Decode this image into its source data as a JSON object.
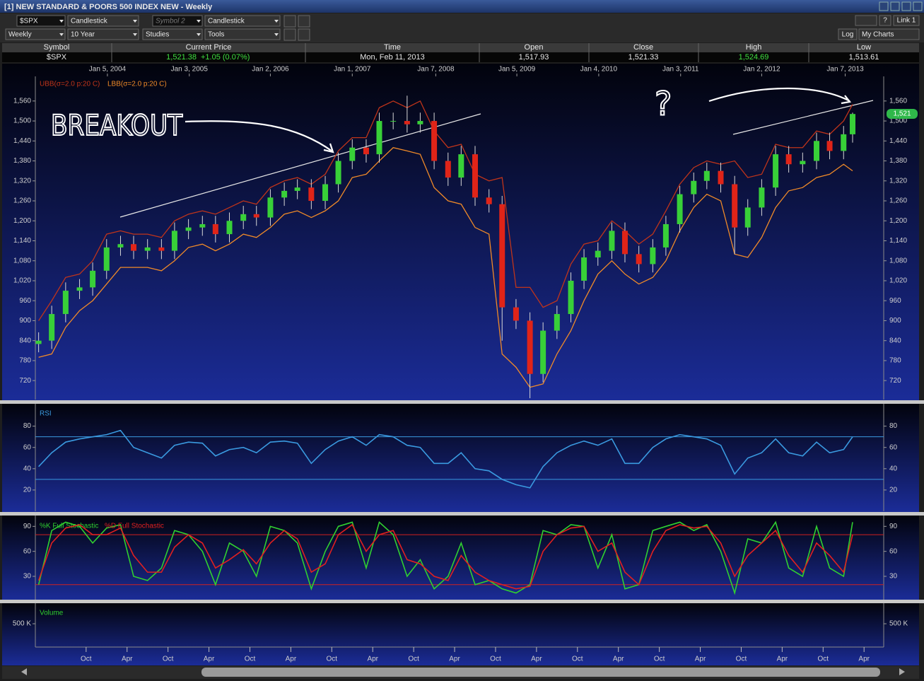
{
  "window": {
    "title": "[1] NEW STANDARD & POORS 500 INDEX NEW - Weekly"
  },
  "toolbar": {
    "symbol": "$SPX",
    "chart_type": "Candlestick",
    "symbol2": "Symbol 2",
    "chart_type2": "Candlestick",
    "period": "Weekly",
    "range": "10 Year",
    "studies": "Studies",
    "tools": "Tools",
    "log": "Log",
    "my_charts": "My Charts",
    "link": "Link 1",
    "help": "?"
  },
  "quote": {
    "headers": [
      "Symbol",
      "Current Price",
      "Time",
      "Open",
      "Close",
      "High",
      "Low"
    ],
    "symbol": "$SPX",
    "price": "1,521.38",
    "change": "+1.05 (0.07%)",
    "time": "Mon, Feb 11, 2013",
    "open": "1,517.93",
    "close": "1,521.33",
    "high": "1,524.69",
    "low": "1,513.61"
  },
  "chart_data": [
    {
      "type": "candlestick",
      "annotations": [
        "BREAKOUT",
        "?"
      ],
      "xlim": [
        2003.13,
        2013.49
      ],
      "xticks": [
        {
          "value": 2004.01,
          "label": "Jan 5, 2004"
        },
        {
          "value": 2005.01,
          "label": "Jan 3, 2005"
        },
        {
          "value": 2006.0,
          "label": "Jan 2, 2006"
        },
        {
          "value": 2007.0,
          "label": "Jan 1, 2007"
        },
        {
          "value": 2008.02,
          "label": "Jan 7, 2008"
        },
        {
          "value": 2009.01,
          "label": "Jan 5, 2009"
        },
        {
          "value": 2010.01,
          "label": "Jan 4, 2010"
        },
        {
          "value": 2011.01,
          "label": "Jan 3, 2011"
        },
        {
          "value": 2012.0,
          "label": "Jan 2, 2012"
        },
        {
          "value": 2013.02,
          "label": "Jan 7, 2013"
        }
      ],
      "ylim": [
        663,
        1634
      ],
      "yticks": [
        720,
        780,
        840,
        900,
        960,
        {
          "value": 1020,
          "label": "1,020"
        },
        {
          "value": 1080,
          "label": "1,080"
        },
        {
          "value": 1140,
          "label": "1,140"
        },
        {
          "value": 1200,
          "label": "1,200"
        },
        {
          "value": 1260,
          "label": "1,260"
        },
        {
          "value": 1320,
          "label": "1,320"
        },
        {
          "value": 1380,
          "label": "1,380"
        },
        {
          "value": 1440,
          "label": "1,440"
        },
        {
          "value": 1500,
          "label": "1,500"
        },
        {
          "value": 1560,
          "label": "1,560"
        }
      ],
      "up_color": "#38d038",
      "down_color": "#e02418",
      "x": [
        2003.17,
        2003.33,
        2003.5,
        2003.67,
        2003.83,
        2004,
        2004.17,
        2004.33,
        2004.5,
        2004.67,
        2004.83,
        2005,
        2005.17,
        2005.33,
        2005.5,
        2005.67,
        2005.83,
        2006,
        2006.17,
        2006.33,
        2006.5,
        2006.67,
        2006.83,
        2007,
        2007.17,
        2007.33,
        2007.5,
        2007.67,
        2007.83,
        2008,
        2008.17,
        2008.33,
        2008.5,
        2008.67,
        2008.83,
        2009,
        2009.17,
        2009.33,
        2009.5,
        2009.67,
        2009.83,
        2010,
        2010.17,
        2010.33,
        2010.5,
        2010.67,
        2010.83,
        2011,
        2011.17,
        2011.33,
        2011.5,
        2011.67,
        2011.83,
        2012,
        2012.17,
        2012.33,
        2012.5,
        2012.67,
        2012.83,
        2013,
        2013.11
      ],
      "open": [
        830,
        840,
        920,
        990,
        1000,
        1050,
        1120,
        1130,
        1110,
        1120,
        1110,
        1170,
        1180,
        1190,
        1160,
        1200,
        1220,
        1210,
        1270,
        1290,
        1300,
        1260,
        1310,
        1380,
        1420,
        1400,
        1500,
        1500,
        1490,
        1500,
        1380,
        1330,
        1400,
        1270,
        1250,
        940,
        900,
        740,
        870,
        920,
        1020,
        1090,
        1110,
        1170,
        1100,
        1070,
        1120,
        1190,
        1280,
        1320,
        1350,
        1310,
        1180,
        1240,
        1300,
        1400,
        1370,
        1380,
        1440,
        1410,
        1460
      ],
      "high": [
        865,
        945,
        1015,
        1025,
        1075,
        1145,
        1155,
        1155,
        1145,
        1145,
        1195,
        1205,
        1215,
        1215,
        1225,
        1245,
        1245,
        1295,
        1315,
        1325,
        1325,
        1335,
        1405,
        1445,
        1445,
        1525,
        1525,
        1576,
        1525,
        1525,
        1405,
        1425,
        1425,
        1295,
        1275,
        965,
        925,
        895,
        945,
        1045,
        1115,
        1135,
        1195,
        1195,
        1125,
        1145,
        1215,
        1305,
        1345,
        1375,
        1375,
        1335,
        1265,
        1325,
        1425,
        1425,
        1405,
        1465,
        1465,
        1485,
        1525
      ],
      "low": [
        805,
        815,
        895,
        965,
        975,
        1025,
        1095,
        1085,
        1085,
        1085,
        1085,
        1145,
        1155,
        1135,
        1135,
        1175,
        1185,
        1185,
        1245,
        1265,
        1235,
        1235,
        1285,
        1355,
        1375,
        1375,
        1475,
        1465,
        1465,
        1355,
        1305,
        1305,
        1245,
        1225,
        840,
        875,
        667,
        715,
        845,
        895,
        995,
        1065,
        1085,
        1075,
        1045,
        1045,
        1095,
        1165,
        1255,
        1295,
        1285,
        1100,
        1155,
        1215,
        1275,
        1345,
        1345,
        1355,
        1385,
        1385,
        1435
      ],
      "close": [
        840,
        920,
        990,
        1000,
        1050,
        1120,
        1130,
        1110,
        1120,
        1110,
        1170,
        1180,
        1190,
        1160,
        1200,
        1220,
        1210,
        1270,
        1290,
        1300,
        1260,
        1310,
        1380,
        1420,
        1400,
        1500,
        1500,
        1490,
        1500,
        1380,
        1330,
        1400,
        1270,
        1250,
        940,
        900,
        740,
        870,
        920,
        1020,
        1090,
        1110,
        1170,
        1100,
        1070,
        1120,
        1190,
        1280,
        1320,
        1350,
        1310,
        1180,
        1240,
        1300,
        1400,
        1370,
        1380,
        1440,
        1410,
        1460,
        1521
      ],
      "bands": [
        {
          "name": "UBB(σ=2.0 p:20 C)",
          "color": "#c0341a",
          "values": [
            900,
            960,
            1030,
            1040,
            1080,
            1160,
            1170,
            1160,
            1160,
            1150,
            1200,
            1220,
            1230,
            1220,
            1240,
            1260,
            1250,
            1300,
            1320,
            1330,
            1310,
            1340,
            1410,
            1450,
            1450,
            1540,
            1560,
            1540,
            1560,
            1470,
            1420,
            1430,
            1340,
            1320,
            1330,
            1000,
            1000,
            940,
            960,
            1070,
            1130,
            1140,
            1200,
            1170,
            1130,
            1160,
            1230,
            1310,
            1360,
            1380,
            1370,
            1380,
            1330,
            1340,
            1430,
            1420,
            1420,
            1470,
            1460,
            1500,
            1550
          ]
        },
        {
          "name": "LBB(σ=2.0 p:20 C)",
          "color": "#f08a28",
          "values": [
            790,
            800,
            880,
            930,
            960,
            1010,
            1060,
            1060,
            1060,
            1050,
            1080,
            1120,
            1130,
            1110,
            1130,
            1160,
            1150,
            1180,
            1220,
            1230,
            1210,
            1230,
            1260,
            1330,
            1340,
            1380,
            1420,
            1410,
            1400,
            1300,
            1260,
            1250,
            1180,
            1160,
            800,
            760,
            700,
            710,
            800,
            870,
            960,
            1040,
            1080,
            1040,
            1010,
            1030,
            1080,
            1170,
            1240,
            1280,
            1260,
            1100,
            1090,
            1150,
            1240,
            1290,
            1300,
            1330,
            1340,
            1370,
            1350
          ]
        }
      ],
      "price_badge": {
        "value": 1521.38,
        "label": "1,521",
        "color": "#2fb84a"
      }
    },
    {
      "type": "line",
      "title": "RSI",
      "title_color": "#3a9ae0",
      "xlim": [
        2003.13,
        2013.49
      ],
      "x": [
        2003.17,
        2003.33,
        2003.5,
        2003.67,
        2003.83,
        2004,
        2004.17,
        2004.33,
        2004.5,
        2004.67,
        2004.83,
        2005,
        2005.17,
        2005.33,
        2005.5,
        2005.67,
        2005.83,
        2006,
        2006.17,
        2006.33,
        2006.5,
        2006.67,
        2006.83,
        2007,
        2007.17,
        2007.33,
        2007.5,
        2007.67,
        2007.83,
        2008,
        2008.17,
        2008.33,
        2008.5,
        2008.67,
        2008.83,
        2009,
        2009.17,
        2009.33,
        2009.5,
        2009.67,
        2009.83,
        2010,
        2010.17,
        2010.33,
        2010.5,
        2010.67,
        2010.83,
        2011,
        2011.17,
        2011.33,
        2011.5,
        2011.67,
        2011.83,
        2012,
        2012.17,
        2012.33,
        2012.5,
        2012.67,
        2012.83,
        2013,
        2013.11
      ],
      "ylim": [
        0,
        101
      ],
      "yticks": [
        20,
        40,
        60,
        80
      ],
      "levels": [
        30,
        70
      ],
      "level_color": "#3a9ae0",
      "series": [
        {
          "color": "#3a9ae0",
          "values": [
            42,
            55,
            65,
            68,
            70,
            72,
            76,
            60,
            55,
            50,
            62,
            65,
            64,
            52,
            58,
            60,
            55,
            65,
            66,
            64,
            45,
            58,
            66,
            70,
            62,
            72,
            70,
            62,
            60,
            45,
            45,
            55,
            40,
            38,
            30,
            25,
            22,
            42,
            55,
            62,
            66,
            62,
            68,
            45,
            45,
            60,
            68,
            72,
            70,
            68,
            62,
            35,
            50,
            55,
            68,
            55,
            52,
            65,
            55,
            58,
            70
          ]
        }
      ]
    },
    {
      "type": "line",
      "xlim": [
        2003.13,
        2013.49
      ],
      "x": [
        2003.17,
        2003.33,
        2003.5,
        2003.67,
        2003.83,
        2004,
        2004.17,
        2004.33,
        2004.5,
        2004.67,
        2004.83,
        2005,
        2005.17,
        2005.33,
        2005.5,
        2005.67,
        2005.83,
        2006,
        2006.17,
        2006.33,
        2006.5,
        2006.67,
        2006.83,
        2007,
        2007.17,
        2007.33,
        2007.5,
        2007.67,
        2007.83,
        2008,
        2008.17,
        2008.33,
        2008.5,
        2008.67,
        2008.83,
        2009,
        2009.17,
        2009.33,
        2009.5,
        2009.67,
        2009.83,
        2010,
        2010.17,
        2010.33,
        2010.5,
        2010.67,
        2010.83,
        2011,
        2011.17,
        2011.33,
        2011.5,
        2011.67,
        2011.83,
        2012,
        2012.17,
        2012.33,
        2012.5,
        2012.67,
        2012.83,
        2013,
        2013.11
      ],
      "ylim": [
        2,
        103
      ],
      "yticks": [
        30,
        60,
        90
      ],
      "levels": [
        20,
        80
      ],
      "level_color": "#d02020",
      "series": [
        {
          "name": "%K Full Stochastic",
          "color": "#30d030",
          "values": [
            20,
            85,
            95,
            90,
            70,
            88,
            92,
            30,
            25,
            40,
            85,
            80,
            60,
            20,
            70,
            60,
            30,
            90,
            85,
            70,
            15,
            60,
            90,
            95,
            40,
            95,
            80,
            30,
            50,
            15,
            30,
            70,
            20,
            25,
            15,
            10,
            20,
            85,
            80,
            92,
            90,
            40,
            80,
            15,
            20,
            85,
            90,
            95,
            85,
            92,
            60,
            10,
            75,
            70,
            95,
            40,
            30,
            90,
            40,
            30,
            95
          ]
        },
        {
          "name": "%D Full Stochastic",
          "color": "#e02020",
          "values": [
            25,
            70,
            88,
            92,
            80,
            80,
            88,
            55,
            35,
            35,
            65,
            80,
            70,
            40,
            50,
            62,
            45,
            70,
            85,
            75,
            35,
            45,
            80,
            92,
            60,
            80,
            85,
            50,
            45,
            30,
            25,
            55,
            35,
            25,
            20,
            15,
            18,
            60,
            80,
            88,
            90,
            60,
            70,
            35,
            20,
            60,
            85,
            92,
            88,
            90,
            70,
            30,
            55,
            70,
            85,
            55,
            35,
            70,
            55,
            35,
            80
          ]
        }
      ]
    },
    {
      "type": "bar",
      "title": "Volume",
      "title_color": "#30d030",
      "ylim": [
        0,
        940000
      ],
      "yticks": [
        {
          "value": 500000,
          "label": "500 K"
        }
      ],
      "xlim": [
        2003.13,
        2013.49
      ],
      "xticks": [
        {
          "value": 2003.75,
          "label": "Oct"
        },
        {
          "value": 2004.25,
          "label": "Apr"
        },
        {
          "value": 2004.75,
          "label": "Oct"
        },
        {
          "value": 2005.25,
          "label": "Apr"
        },
        {
          "value": 2005.75,
          "label": "Oct"
        },
        {
          "value": 2006.25,
          "label": "Apr"
        },
        {
          "value": 2006.75,
          "label": "Oct"
        },
        {
          "value": 2007.25,
          "label": "Apr"
        },
        {
          "value": 2007.75,
          "label": "Oct"
        },
        {
          "value": 2008.25,
          "label": "Apr"
        },
        {
          "value": 2008.75,
          "label": "Oct"
        },
        {
          "value": 2009.25,
          "label": "Apr"
        },
        {
          "value": 2009.75,
          "label": "Oct"
        },
        {
          "value": 2010.25,
          "label": "Apr"
        },
        {
          "value": 2010.75,
          "label": "Oct"
        },
        {
          "value": 2011.25,
          "label": "Apr"
        },
        {
          "value": 2011.75,
          "label": "Oct"
        },
        {
          "value": 2012.25,
          "label": "Apr"
        },
        {
          "value": 2012.75,
          "label": "Oct"
        },
        {
          "value": 2013.25,
          "label": "Apr"
        }
      ]
    }
  ]
}
